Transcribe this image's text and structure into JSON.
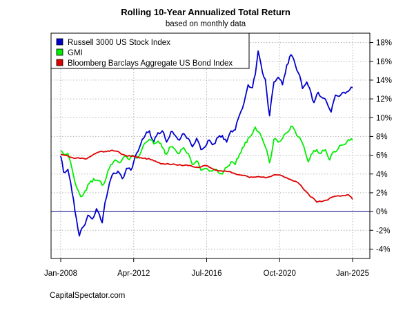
{
  "chart_data": {
    "type": "line",
    "title": "Rolling 10-Year Annualized Total Return",
    "subtitle": "based on monthly data",
    "source": "CapitalSpectator.com",
    "x_ticks": [
      "Jan-2008",
      "Apr-2012",
      "Jul-2016",
      "Oct-2020",
      "Jan-2025"
    ],
    "y_ticks": [
      "-4%",
      "-2%",
      "0%",
      "2%",
      "4%",
      "6%",
      "8%",
      "10%",
      "12%",
      "14%",
      "16%",
      "18%"
    ],
    "y_tick_values": [
      -4,
      -2,
      0,
      2,
      4,
      6,
      8,
      10,
      12,
      14,
      16,
      18
    ],
    "x_range": [
      "2008-01",
      "2025-01"
    ],
    "ylim": [
      -5,
      19
    ],
    "y_axis_position": "right",
    "grid": true,
    "zero_line": true,
    "legend_position": "top-left",
    "series": [
      {
        "name": "Russell 3000 US Stock Index",
        "color": "#0000cc",
        "points": [
          [
            "2008-01",
            5.9
          ],
          [
            "2008-03",
            4.2
          ],
          [
            "2008-06",
            4.5
          ],
          [
            "2008-09",
            2.0
          ],
          [
            "2008-12",
            -0.8
          ],
          [
            "2009-02",
            -2.6
          ],
          [
            "2009-05",
            -1.6
          ],
          [
            "2009-08",
            -0.4
          ],
          [
            "2009-11",
            -0.8
          ],
          [
            "2010-02",
            0.3
          ],
          [
            "2010-04",
            -0.3
          ],
          [
            "2010-06",
            -1.2
          ],
          [
            "2010-08",
            1.0
          ],
          [
            "2010-11",
            3.0
          ],
          [
            "2011-02",
            4.1
          ],
          [
            "2011-05",
            4.3
          ],
          [
            "2011-08",
            3.5
          ],
          [
            "2011-11",
            4.6
          ],
          [
            "2012-02",
            4.4
          ],
          [
            "2012-04",
            5.3
          ],
          [
            "2012-07",
            6.4
          ],
          [
            "2012-10",
            7.7
          ],
          [
            "2012-12",
            8.1
          ],
          [
            "2013-03",
            8.6
          ],
          [
            "2013-06",
            7.4
          ],
          [
            "2013-09",
            8.4
          ],
          [
            "2013-12",
            8.6
          ],
          [
            "2014-03",
            7.4
          ],
          [
            "2014-06",
            8.5
          ],
          [
            "2014-09",
            8.1
          ],
          [
            "2014-12",
            7.6
          ],
          [
            "2015-03",
            8.3
          ],
          [
            "2015-06",
            7.8
          ],
          [
            "2015-09",
            6.9
          ],
          [
            "2015-12",
            7.8
          ],
          [
            "2016-03",
            6.6
          ],
          [
            "2016-06",
            6.9
          ],
          [
            "2016-09",
            7.6
          ],
          [
            "2016-12",
            7.2
          ],
          [
            "2017-03",
            7.9
          ],
          [
            "2017-06",
            8.1
          ],
          [
            "2017-09",
            7.4
          ],
          [
            "2017-12",
            8.6
          ],
          [
            "2018-03",
            8.7
          ],
          [
            "2018-06",
            10.3
          ],
          [
            "2018-09",
            11.5
          ],
          [
            "2018-12",
            13.5
          ],
          [
            "2019-03",
            13.2
          ],
          [
            "2019-05",
            14.6
          ],
          [
            "2019-07",
            17.1
          ],
          [
            "2019-10",
            14.8
          ],
          [
            "2019-12",
            14.1
          ],
          [
            "2020-02",
            11.2
          ],
          [
            "2020-03",
            10.2
          ],
          [
            "2020-06",
            13.8
          ],
          [
            "2020-09",
            14.3
          ],
          [
            "2020-12",
            13.5
          ],
          [
            "2021-03",
            15.6
          ],
          [
            "2021-06",
            16.7
          ],
          [
            "2021-09",
            15.6
          ],
          [
            "2021-12",
            14.5
          ],
          [
            "2022-02",
            13.1
          ],
          [
            "2022-05",
            13.8
          ],
          [
            "2022-08",
            12.6
          ],
          [
            "2022-10",
            11.6
          ],
          [
            "2023-01",
            12.7
          ],
          [
            "2023-04",
            12.1
          ],
          [
            "2023-07",
            11.6
          ],
          [
            "2023-10",
            10.6
          ],
          [
            "2024-01",
            12.4
          ],
          [
            "2024-04",
            12.3
          ],
          [
            "2024-07",
            12.7
          ],
          [
            "2024-10",
            12.8
          ],
          [
            "2025-01",
            13.2
          ]
        ]
      },
      {
        "name": "GMI",
        "color": "#00ee00",
        "points": [
          [
            "2008-01",
            6.5
          ],
          [
            "2008-03",
            6.1
          ],
          [
            "2008-06",
            6.2
          ],
          [
            "2008-09",
            4.5
          ],
          [
            "2008-12",
            2.6
          ],
          [
            "2009-03",
            1.6
          ],
          [
            "2009-06",
            2.2
          ],
          [
            "2009-09",
            3.0
          ],
          [
            "2009-12",
            3.5
          ],
          [
            "2010-03",
            3.3
          ],
          [
            "2010-06",
            2.8
          ],
          [
            "2010-09",
            3.7
          ],
          [
            "2010-12",
            5.0
          ],
          [
            "2011-03",
            5.5
          ],
          [
            "2011-06",
            5.2
          ],
          [
            "2011-09",
            5.8
          ],
          [
            "2011-12",
            5.6
          ],
          [
            "2012-03",
            6.0
          ],
          [
            "2012-06",
            5.7
          ],
          [
            "2012-09",
            6.3
          ],
          [
            "2012-12",
            7.3
          ],
          [
            "2013-03",
            7.7
          ],
          [
            "2013-06",
            7.2
          ],
          [
            "2013-09",
            7.5
          ],
          [
            "2013-12",
            6.8
          ],
          [
            "2014-03",
            6.1
          ],
          [
            "2014-06",
            6.9
          ],
          [
            "2014-09",
            6.6
          ],
          [
            "2014-12",
            6.2
          ],
          [
            "2015-03",
            6.8
          ],
          [
            "2015-06",
            6.2
          ],
          [
            "2015-09",
            5.0
          ],
          [
            "2015-12",
            5.4
          ],
          [
            "2016-03",
            4.4
          ],
          [
            "2016-06",
            4.6
          ],
          [
            "2016-09",
            4.3
          ],
          [
            "2016-12",
            4.5
          ],
          [
            "2017-03",
            4.2
          ],
          [
            "2017-06",
            4.0
          ],
          [
            "2017-09",
            4.7
          ],
          [
            "2017-12",
            5.3
          ],
          [
            "2018-03",
            5.0
          ],
          [
            "2018-06",
            6.1
          ],
          [
            "2018-09",
            6.9
          ],
          [
            "2018-12",
            7.8
          ],
          [
            "2019-03",
            8.3
          ],
          [
            "2019-05",
            9.0
          ],
          [
            "2019-07",
            8.5
          ],
          [
            "2019-10",
            7.7
          ],
          [
            "2019-12",
            6.9
          ],
          [
            "2020-03",
            5.2
          ],
          [
            "2020-06",
            7.7
          ],
          [
            "2020-09",
            7.4
          ],
          [
            "2020-12",
            7.8
          ],
          [
            "2021-03",
            8.4
          ],
          [
            "2021-06",
            9.1
          ],
          [
            "2021-09",
            8.5
          ],
          [
            "2021-12",
            7.9
          ],
          [
            "2022-03",
            6.9
          ],
          [
            "2022-06",
            5.3
          ],
          [
            "2022-09",
            6.2
          ],
          [
            "2022-12",
            6.6
          ],
          [
            "2023-03",
            6.2
          ],
          [
            "2023-06",
            6.6
          ],
          [
            "2023-09",
            5.5
          ],
          [
            "2023-12",
            6.4
          ],
          [
            "2024-03",
            6.7
          ],
          [
            "2024-06",
            7.1
          ],
          [
            "2024-09",
            7.4
          ],
          [
            "2025-01",
            7.6
          ]
        ]
      },
      {
        "name": "Bloomberg Barclays Aggregate US Bond Index",
        "color": "#dd0000",
        "points": [
          [
            "2008-01",
            6.1
          ],
          [
            "2008-06",
            5.9
          ],
          [
            "2008-12",
            5.7
          ],
          [
            "2009-06",
            5.6
          ],
          [
            "2009-12",
            6.1
          ],
          [
            "2010-06",
            6.4
          ],
          [
            "2010-12",
            6.5
          ],
          [
            "2011-06",
            6.3
          ],
          [
            "2011-12",
            5.9
          ],
          [
            "2012-06",
            5.8
          ],
          [
            "2012-12",
            5.7
          ],
          [
            "2013-06",
            5.4
          ],
          [
            "2013-12",
            5.1
          ],
          [
            "2014-06",
            5.0
          ],
          [
            "2014-12",
            5.0
          ],
          [
            "2015-06",
            4.9
          ],
          [
            "2015-12",
            4.7
          ],
          [
            "2016-06",
            4.9
          ],
          [
            "2016-12",
            4.5
          ],
          [
            "2017-06",
            4.3
          ],
          [
            "2017-12",
            4.2
          ],
          [
            "2018-06",
            3.9
          ],
          [
            "2018-12",
            3.7
          ],
          [
            "2019-06",
            3.7
          ],
          [
            "2019-12",
            3.6
          ],
          [
            "2020-06",
            3.9
          ],
          [
            "2020-12",
            3.8
          ],
          [
            "2021-06",
            3.4
          ],
          [
            "2021-12",
            2.9
          ],
          [
            "2022-06",
            1.9
          ],
          [
            "2022-12",
            1.0
          ],
          [
            "2023-06",
            1.2
          ],
          [
            "2023-12",
            1.6
          ],
          [
            "2024-06",
            1.7
          ],
          [
            "2024-10",
            1.8
          ],
          [
            "2025-01",
            1.3
          ]
        ]
      }
    ]
  }
}
